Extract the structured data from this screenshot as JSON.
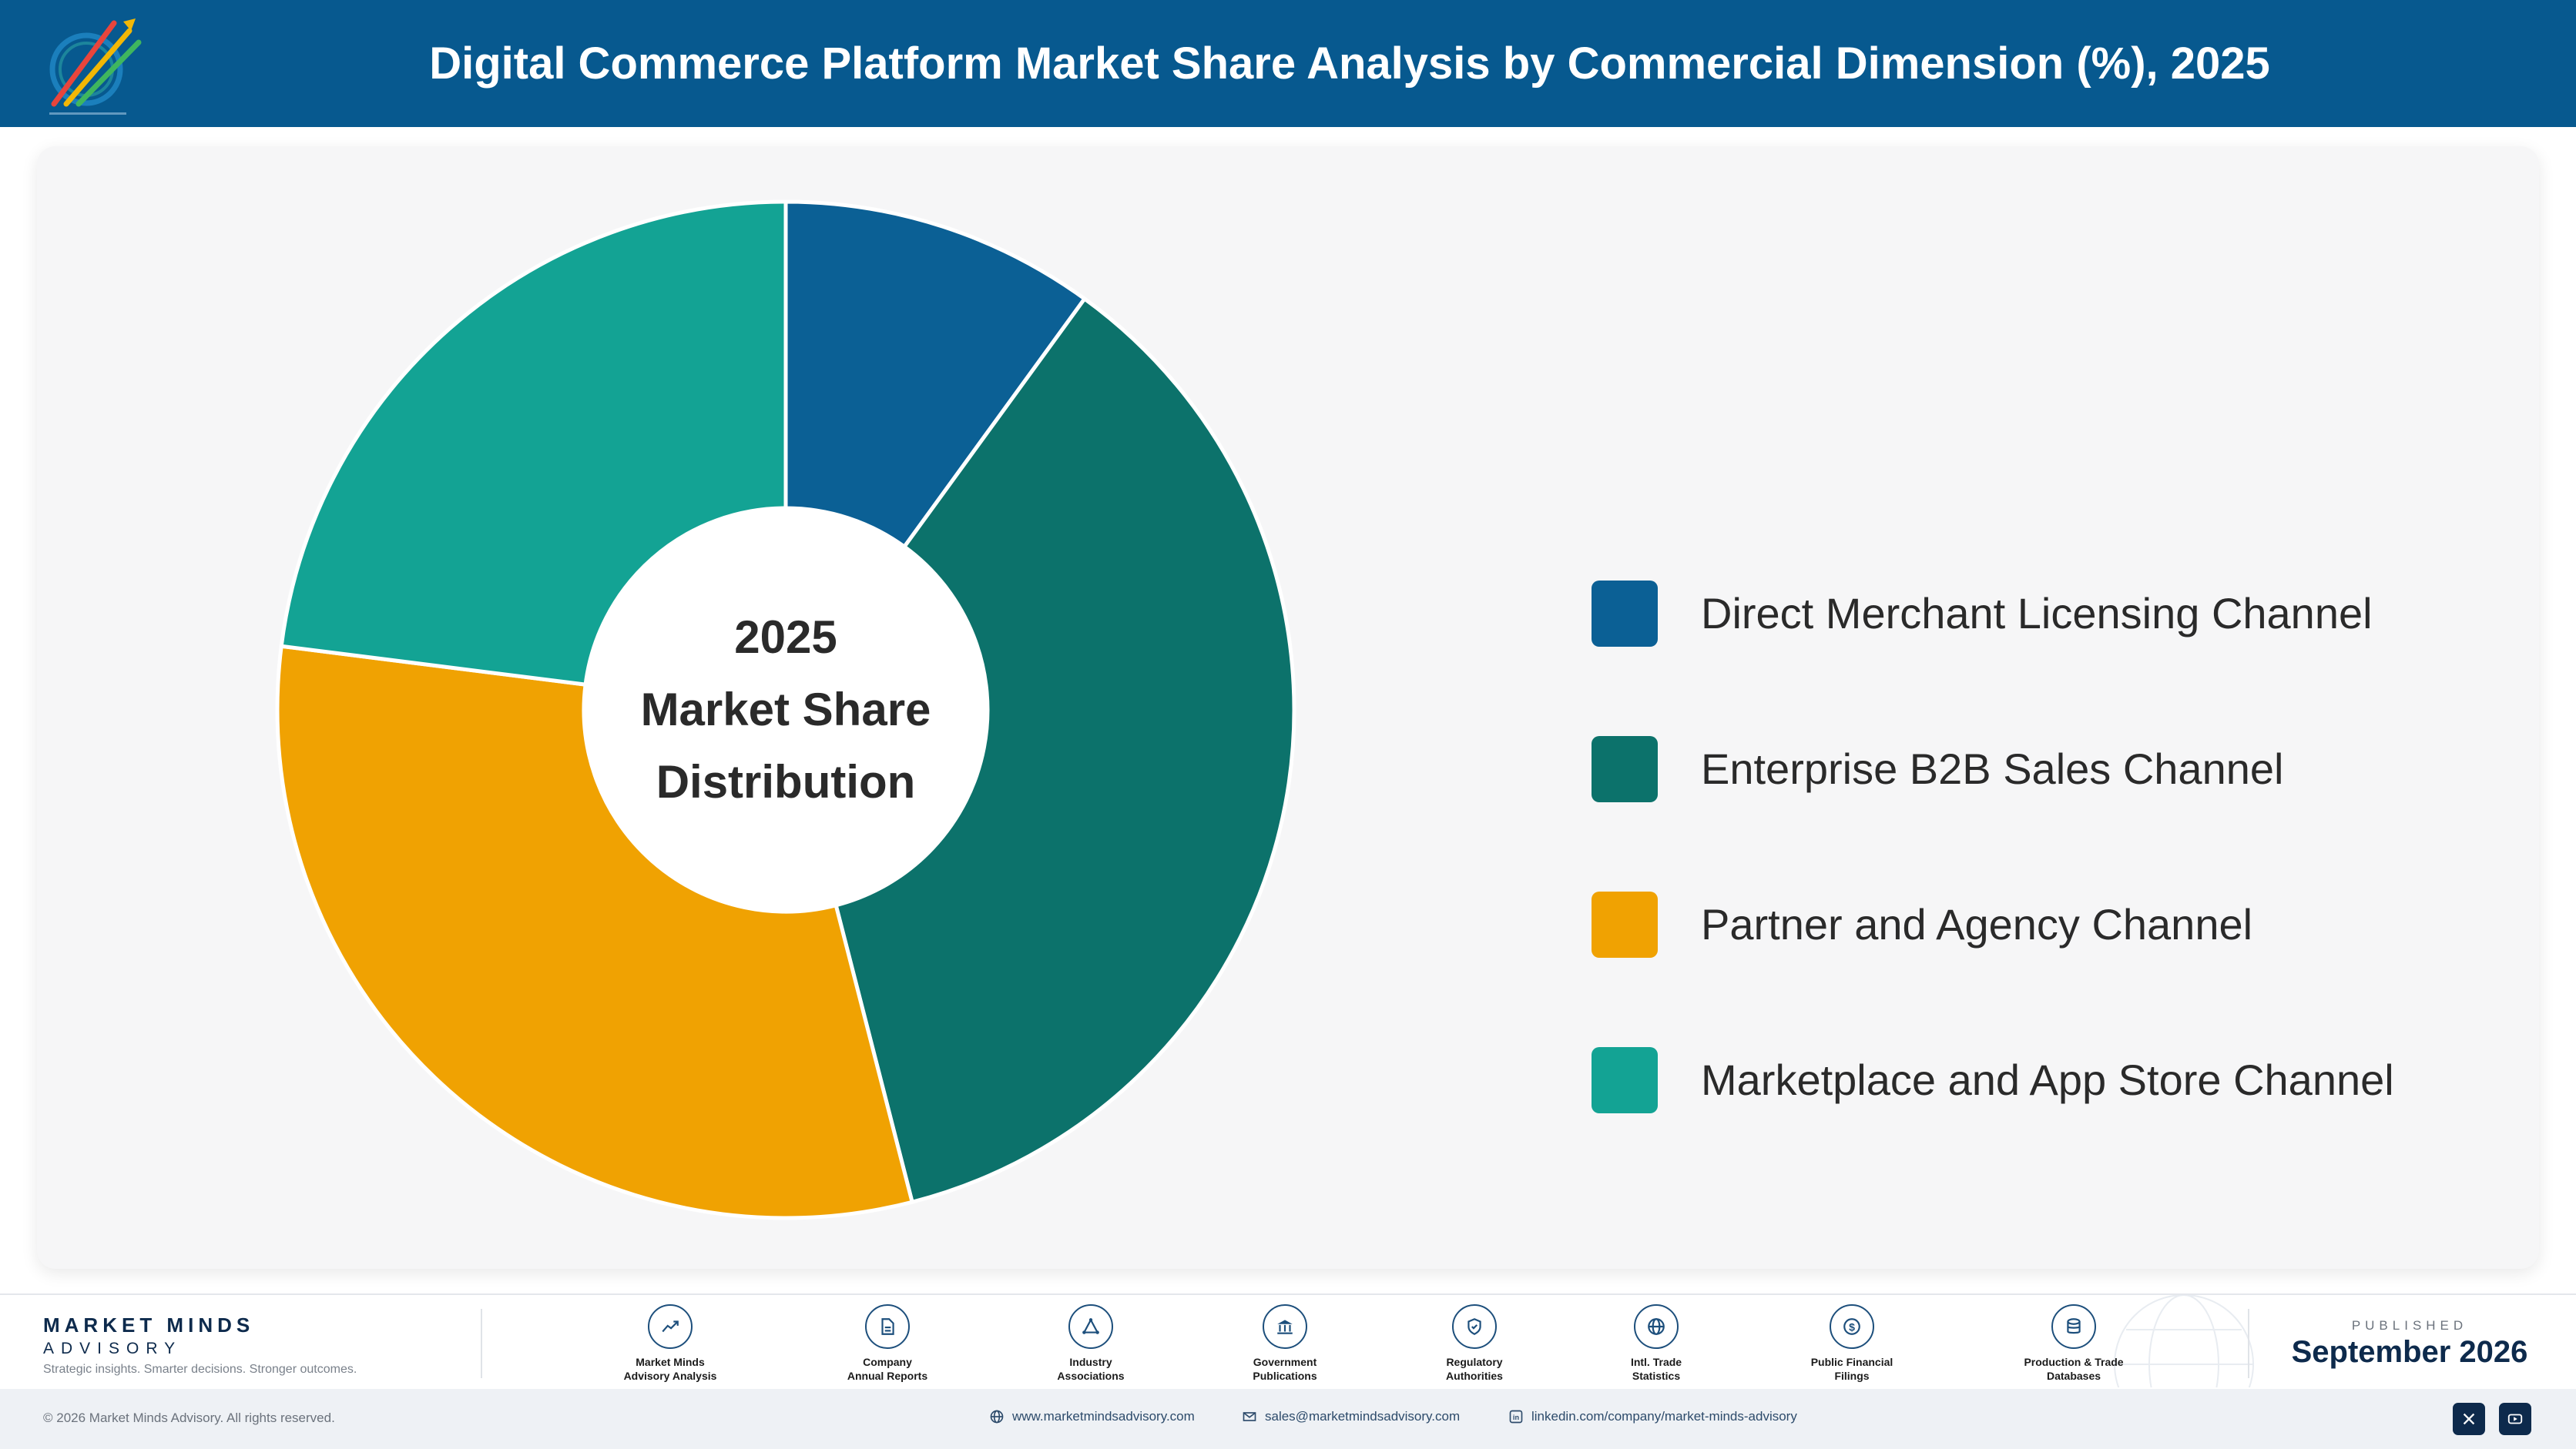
{
  "header": {
    "title": "Digital Commerce Platform Market Share Analysis by Commercial Dimension (%), 2025"
  },
  "chart_data": {
    "type": "pie",
    "variant": "donut",
    "center_label": [
      "2025",
      "Market Share",
      "Distribution"
    ],
    "categories": [
      "Direct Merchant Licensing Channel",
      "Enterprise B2B Sales Channel",
      "Partner and Agency Channel",
      "Marketplace and App Store Channel"
    ],
    "values": [
      10,
      36,
      31,
      23
    ],
    "colors": [
      "#0b6095",
      "#0c726b",
      "#f0a202",
      "#13a394"
    ],
    "legend_position": "right"
  },
  "footer": {
    "brand_name": "MARKET MINDS",
    "brand_sub": "ADVISORY",
    "tagline": "Strategic insights. Smarter decisions. Stronger outcomes.",
    "sources": [
      {
        "line1": "Market Minds",
        "line2": "Advisory Analysis",
        "icon": "trend-chart-icon"
      },
      {
        "line1": "Company",
        "line2": "Annual Reports",
        "icon": "document-icon"
      },
      {
        "line1": "Industry",
        "line2": "Associations",
        "icon": "network-icon"
      },
      {
        "line1": "Government",
        "line2": "Publications",
        "icon": "government-building-icon"
      },
      {
        "line1": "Regulatory",
        "line2": "Authorities",
        "icon": "shield-check-icon"
      },
      {
        "line1": "Intl. Trade",
        "line2": "Statistics",
        "icon": "globe-icon"
      },
      {
        "line1": "Public Financial",
        "line2": "Filings",
        "icon": "dollar-coin-icon"
      },
      {
        "line1": "Production & Trade",
        "line2": "Databases",
        "icon": "database-icon"
      }
    ],
    "published_label": "PUBLISHED",
    "published_date": "September 2026"
  },
  "bottom_bar": {
    "copyright": "© 2026 Market Minds Advisory. All rights reserved.",
    "website": "www.marketmindsadvisory.com",
    "email": "sales@marketmindsadvisory.com",
    "linkedin": "linkedin.com/company/market-minds-advisory"
  }
}
